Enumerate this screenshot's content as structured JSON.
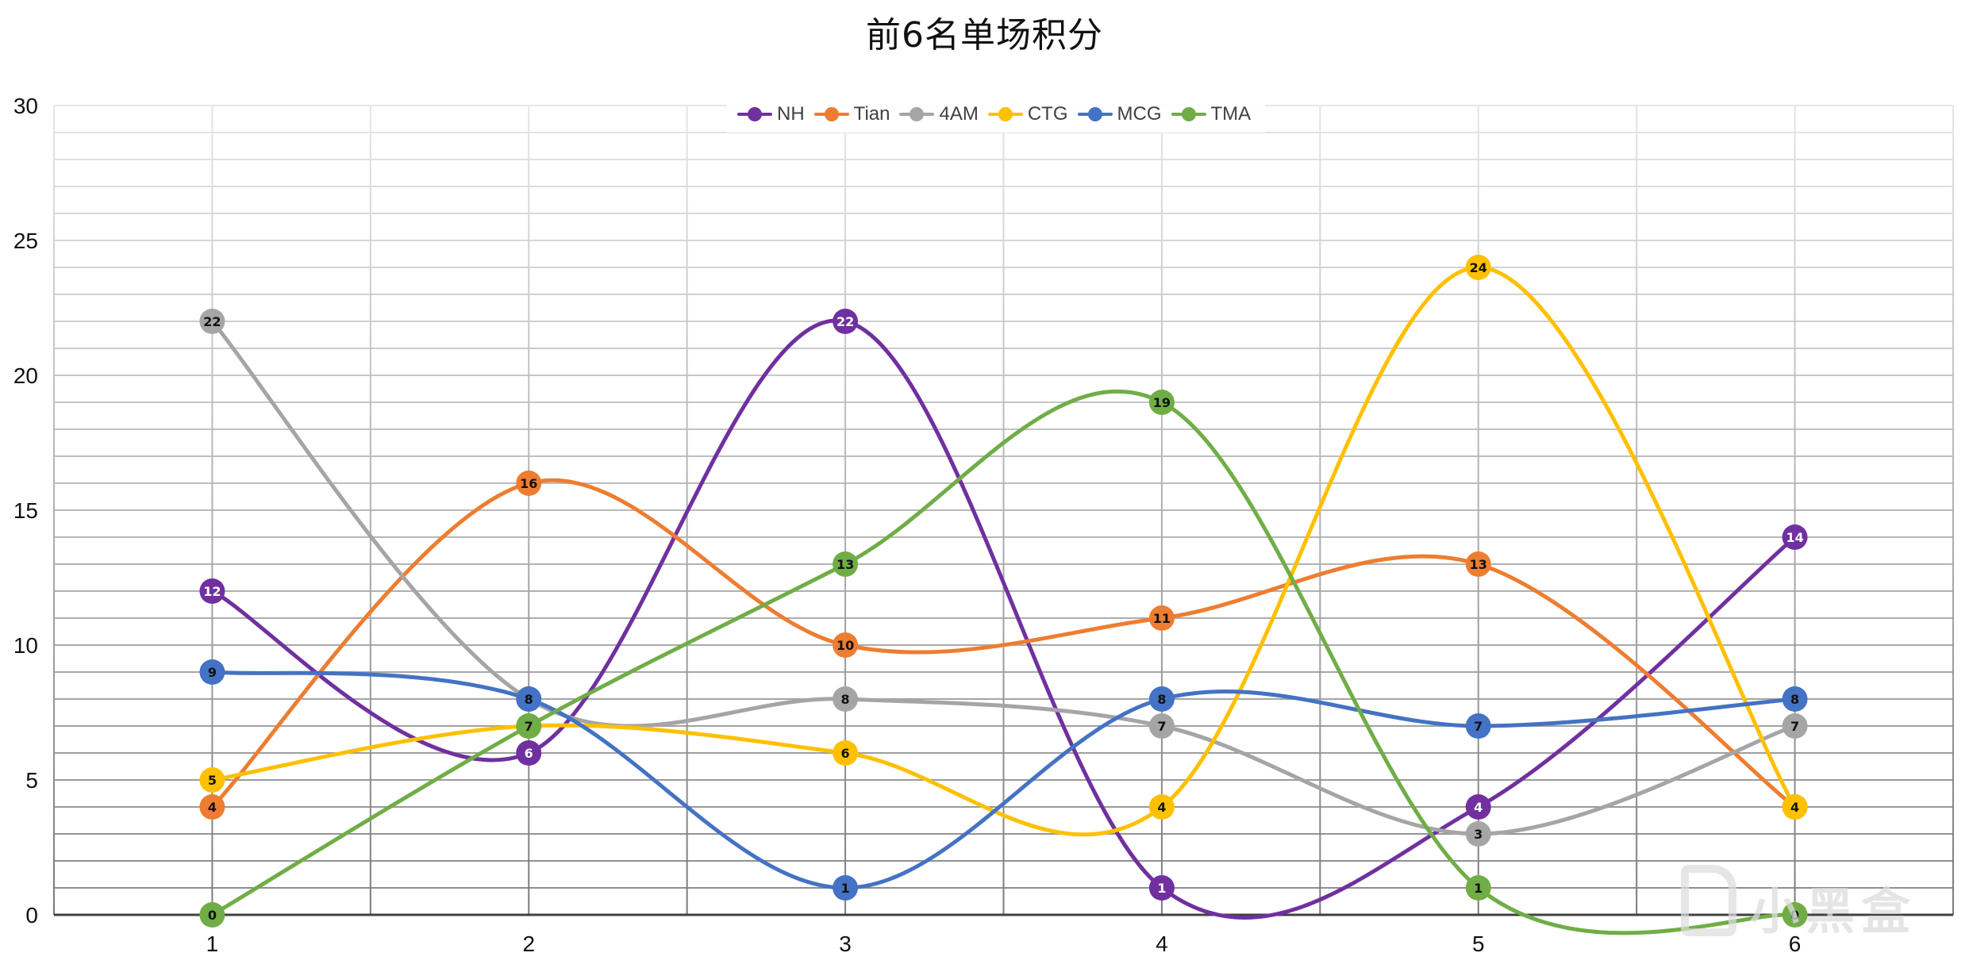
{
  "chart_data": {
    "type": "line",
    "title": "前6名单场积分",
    "xlabel": "",
    "ylabel": "",
    "categories": [
      "1",
      "2",
      "3",
      "4",
      "5",
      "6"
    ],
    "ylim": [
      0,
      30
    ],
    "y_ticks": [
      0,
      5,
      10,
      15,
      20,
      25,
      30
    ],
    "minor_grid_step": 1,
    "grid": true,
    "smooth": true,
    "data_labels": true,
    "legend_position": "top-inside",
    "series": [
      {
        "name": "NH",
        "color": "#7030A0",
        "label_color": "#ffffff",
        "values": [
          12,
          6,
          22,
          1,
          4,
          14
        ]
      },
      {
        "name": "Tian",
        "color": "#ED7D31",
        "label_color": "#111111",
        "values": [
          4,
          16,
          10,
          11,
          13,
          4
        ]
      },
      {
        "name": "4AM",
        "color": "#A5A5A5",
        "label_color": "#111111",
        "values": [
          22,
          8,
          8,
          7,
          3,
          7
        ]
      },
      {
        "name": "CTG",
        "color": "#FFC000",
        "label_color": "#111111",
        "values": [
          5,
          7,
          6,
          4,
          24,
          4
        ]
      },
      {
        "name": "MCG",
        "color": "#4472C4",
        "label_color": "#111111",
        "values": [
          9,
          8,
          1,
          8,
          7,
          8
        ]
      },
      {
        "name": "TMA",
        "color": "#70AD47",
        "label_color": "#111111",
        "values": [
          0,
          7,
          13,
          19,
          1,
          0
        ]
      }
    ]
  },
  "watermark": {
    "text": "小黑盒"
  }
}
